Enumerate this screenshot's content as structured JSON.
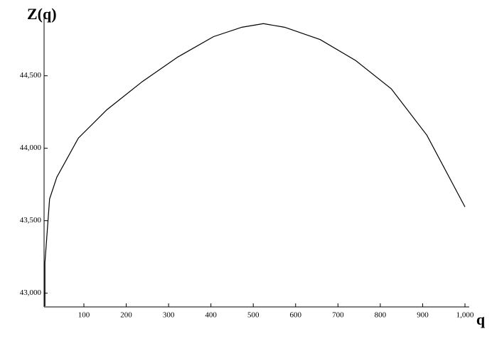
{
  "chart_data": {
    "type": "line",
    "y_label": "Z(q)",
    "x_label": "q",
    "x": [
      8,
      8,
      19,
      36,
      87,
      154,
      238,
      322,
      406,
      473,
      524,
      574,
      658,
      742,
      826,
      910,
      1000
    ],
    "series": [
      {
        "name": "Z(q)",
        "color": "#000000",
        "values": [
          42910,
          43210,
          43650,
          43800,
          44070,
          44265,
          44460,
          44630,
          44770,
          44835,
          44860,
          44835,
          44750,
          44605,
          44410,
          44090,
          43595
        ]
      }
    ],
    "xlim": [
      6,
      1000
    ],
    "ylim": [
      42905,
      44925
    ],
    "xticks": [
      100,
      200,
      300,
      400,
      500,
      600,
      700,
      800,
      900,
      {
        "value": 1000,
        "label": "1,000"
      }
    ],
    "yticks": [
      {
        "value": 43000,
        "label": "43,000"
      },
      {
        "value": 43500,
        "label": "43,500"
      },
      {
        "value": 44000,
        "label": "44,000"
      },
      {
        "value": 44500,
        "label": "44,500"
      }
    ],
    "grid": false
  }
}
